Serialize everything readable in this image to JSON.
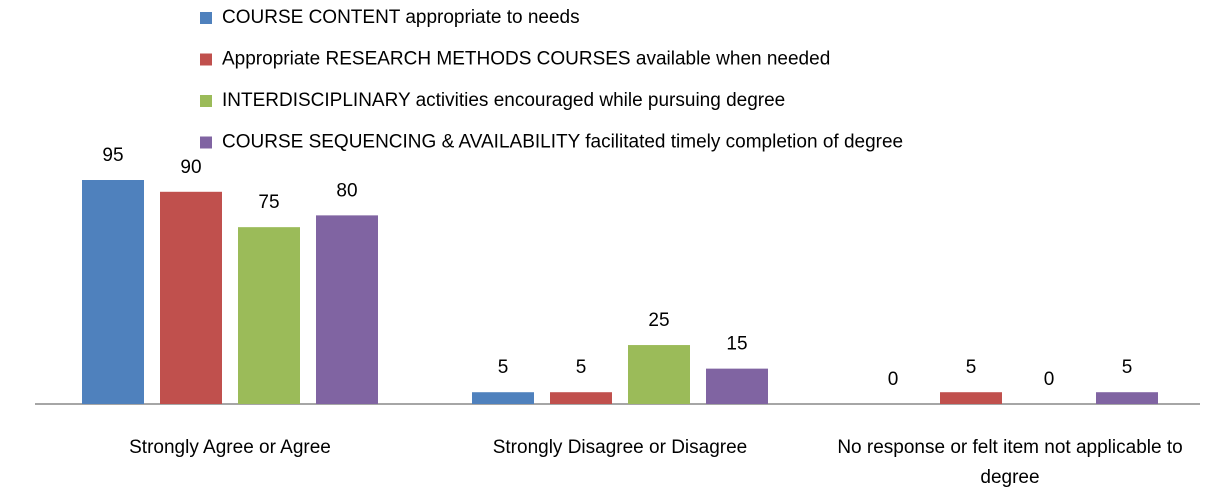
{
  "chart_data": {
    "type": "bar",
    "categories": [
      "Strongly Agree or Agree",
      "Strongly Disagree or Disagree",
      "No response or felt item not applicable to degree"
    ],
    "series": [
      {
        "name": "COURSE CONTENT appropriate to needs",
        "color": "#4f81bd",
        "values": [
          95,
          5,
          0
        ]
      },
      {
        "name": "Appropriate RESEARCH METHODS COURSES available when needed",
        "color": "#c0504d",
        "values": [
          90,
          5,
          5
        ]
      },
      {
        "name": "INTERDISCIPLINARY activities encouraged while pursuing degree",
        "color": "#9bbb59",
        "values": [
          75,
          25,
          0
        ]
      },
      {
        "name": "COURSE SEQUENCING & AVAILABILITY facilitated timely completion of degree",
        "color": "#8064a2",
        "values": [
          80,
          15,
          5
        ]
      }
    ],
    "legend": "top"
  }
}
